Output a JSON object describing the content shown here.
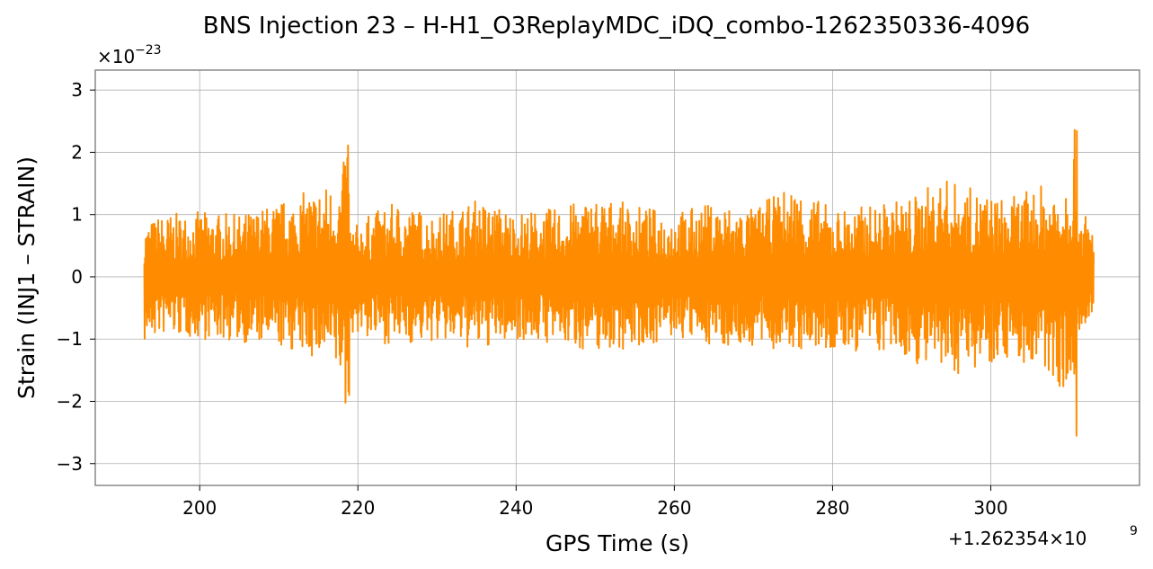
{
  "chart_data": {
    "type": "line",
    "title": "BNS Injection 23 – H-H1_O3ReplayMDC_iDQ_combo-1262350336-4096",
    "xlabel": "GPS Time (s)",
    "ylabel": "Strain (INJ1 – STRAIN)",
    "x_offset_text": "+1.262354×10",
    "x_offset_exponent": "9",
    "y_scale_text": "×10",
    "y_scale_exponent": "−23",
    "x_ticks": [
      "200",
      "220",
      "240",
      "260",
      "280",
      "300"
    ],
    "x_tick_values": [
      200,
      220,
      240,
      260,
      280,
      300
    ],
    "y_ticks": [
      "−3",
      "−2",
      "−1",
      "0",
      "1",
      "2",
      "3"
    ],
    "y_tick_values": [
      -3,
      -2,
      -1,
      0,
      1,
      2,
      3
    ],
    "xlim": [
      186.8,
      318.8
    ],
    "ylim": [
      -3.35,
      3.32
    ],
    "grid": true,
    "line_color": "#ff8c00",
    "series": [
      {
        "x": [
          193,
          195,
          200,
          205,
          210,
          213,
          216,
          218,
          218.8,
          219,
          219.3,
          222,
          225,
          230,
          235,
          240,
          245,
          250,
          255,
          260,
          265,
          270,
          275,
          280,
          285,
          290,
          294,
          298,
          302,
          306,
          308,
          310,
          310.8,
          311,
          311.3,
          313
        ],
        "y_max": [
          0.85,
          1.0,
          1.05,
          1.0,
          1.2,
          1.35,
          1.5,
          1.55,
          2.75,
          1.0,
          0.8,
          1.05,
          1.2,
          1.0,
          1.25,
          1.05,
          1.1,
          1.3,
          1.15,
          1.05,
          1.2,
          1.1,
          1.5,
          1.1,
          1.15,
          1.3,
          1.6,
          1.4,
          1.25,
          1.45,
          1.55,
          1.85,
          3.0,
          1.3,
          1.2,
          0.8
        ],
        "y_min": [
          -1.1,
          -0.95,
          -1.0,
          -1.05,
          -1.15,
          -1.25,
          -1.4,
          -1.7,
          -2.8,
          -1.1,
          -0.9,
          -1.05,
          -1.1,
          -1.05,
          -1.2,
          -1.0,
          -1.1,
          -1.2,
          -1.15,
          -1.0,
          -1.1,
          -1.15,
          -1.2,
          -1.25,
          -1.2,
          -1.35,
          -1.65,
          -1.45,
          -1.3,
          -1.55,
          -1.7,
          -1.9,
          -3.05,
          -1.3,
          -1.1,
          -0.8
        ]
      }
    ]
  }
}
